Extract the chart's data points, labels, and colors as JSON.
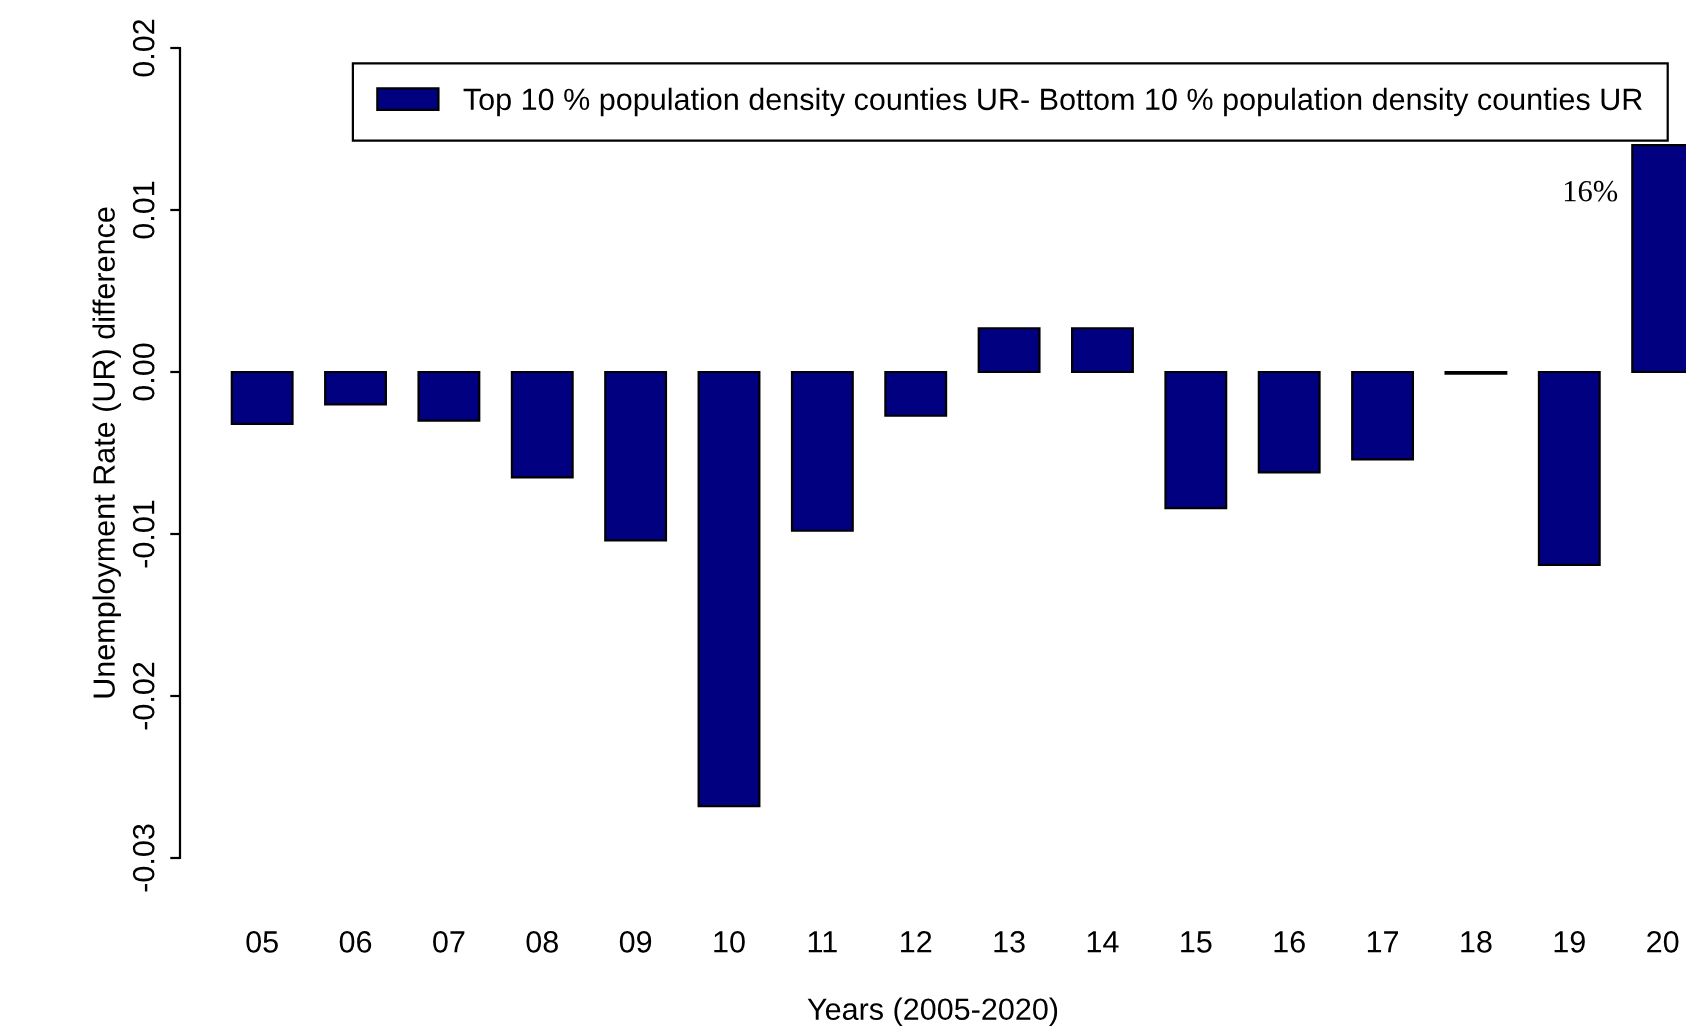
{
  "chart_data": {
    "type": "bar",
    "xlabel": "Years (2005-2020)",
    "ylabel": "Unemployment Rate (UR) difference",
    "categories": [
      "05",
      "06",
      "07",
      "08",
      "09",
      "10",
      "11",
      "12",
      "13",
      "14",
      "15",
      "16",
      "17",
      "18",
      "19",
      "20"
    ],
    "series": [
      {
        "name": "Top 10 % population density counties UR- Bottom 10 % population density counties UR",
        "color": "#000080",
        "values": [
          -0.0032,
          -0.002,
          -0.003,
          -0.0065,
          -0.0104,
          -0.0268,
          -0.0098,
          -0.0027,
          0.0027,
          0.0027,
          -0.0084,
          -0.0062,
          -0.0054,
          -0.0001,
          -0.0119,
          0.014
        ]
      }
    ],
    "ylim": [
      -0.03,
      0.02
    ],
    "yticks": [
      {
        "value": -0.03,
        "label": "-0.03"
      },
      {
        "value": -0.02,
        "label": "-0.02"
      },
      {
        "value": -0.01,
        "label": "-0.01"
      },
      {
        "value": 0,
        "label": "0.00"
      },
      {
        "value": 0.01,
        "label": "0.01"
      },
      {
        "value": 0.02,
        "label": "0.02"
      }
    ],
    "annotations": [
      "16%"
    ],
    "legend": "top right",
    "grid": false
  }
}
